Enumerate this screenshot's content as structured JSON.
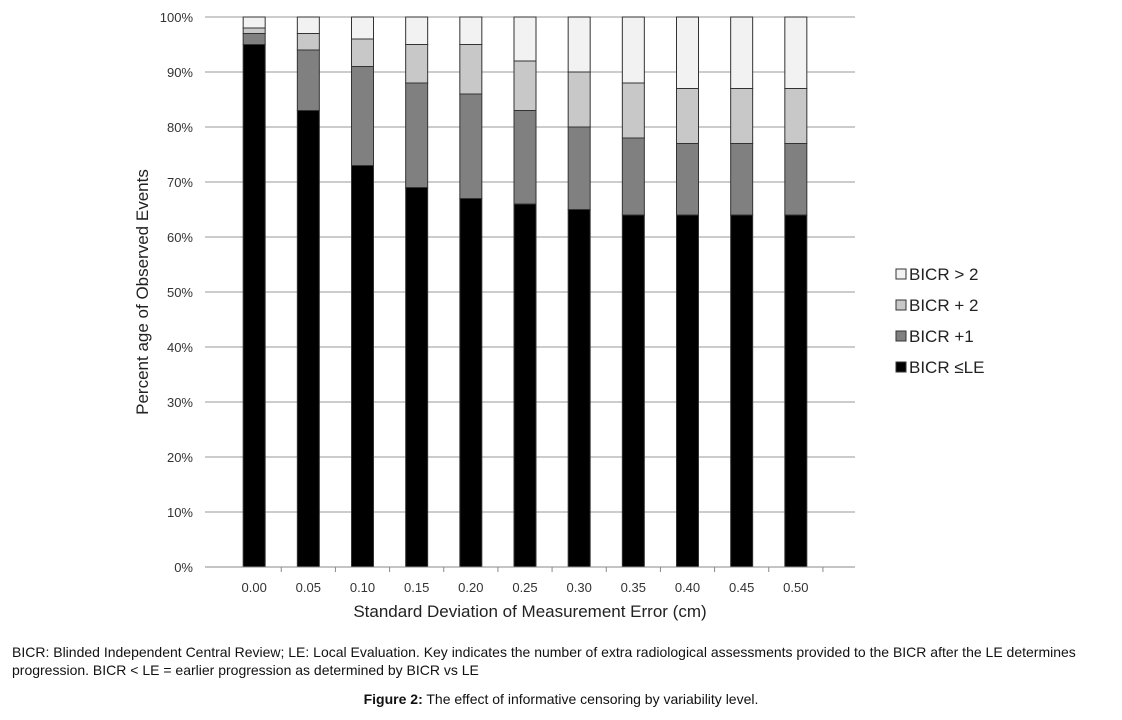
{
  "chart_data": {
    "type": "bar",
    "stacked": true,
    "categories": [
      "0.00",
      "0.05",
      "0.10",
      "0.15",
      "0.20",
      "0.25",
      "0.30",
      "0.35",
      "0.40",
      "0.45",
      "0.50"
    ],
    "series": [
      {
        "name": "BICR ≤LE",
        "color": "#000000",
        "values": [
          95,
          83,
          73,
          69,
          67,
          66,
          65,
          64,
          64,
          64,
          64
        ]
      },
      {
        "name": "BICR +1",
        "color": "#808080",
        "values": [
          2,
          11,
          18,
          19,
          19,
          17,
          15,
          14,
          13,
          13,
          13
        ]
      },
      {
        "name": "BICR + 2",
        "color": "#c8c8c8",
        "values": [
          1,
          3,
          5,
          7,
          9,
          9,
          10,
          10,
          10,
          10,
          10
        ]
      },
      {
        "name": "BICR > 2",
        "color": "#f2f2f2",
        "values": [
          2,
          3,
          4,
          5,
          5,
          8,
          10,
          12,
          13,
          13,
          13
        ]
      }
    ],
    "legend_order": [
      "BICR > 2",
      "BICR + 2",
      "BICR +1",
      "BICR ≤LE"
    ],
    "yticks": [
      "0%",
      "10%",
      "20%",
      "30%",
      "40%",
      "50%",
      "60%",
      "70%",
      "80%",
      "90%",
      "100%"
    ],
    "ylim": [
      0,
      100
    ],
    "xlabel": "Standard Deviation of Measurement Error (cm)",
    "ylabel": "Percent age of Observed Events",
    "grid": true,
    "legend_position": "right"
  },
  "note_text": "BICR: Blinded Independent Central Review; LE: Local Evaluation. Key indicates the number of extra radiological assessments provided to the BICR after the LE determines progression.  BICR < LE = earlier progression as determined by BICR vs LE",
  "caption": {
    "label": "Figure 2:",
    "text": " The effect of informative censoring by variability level."
  }
}
